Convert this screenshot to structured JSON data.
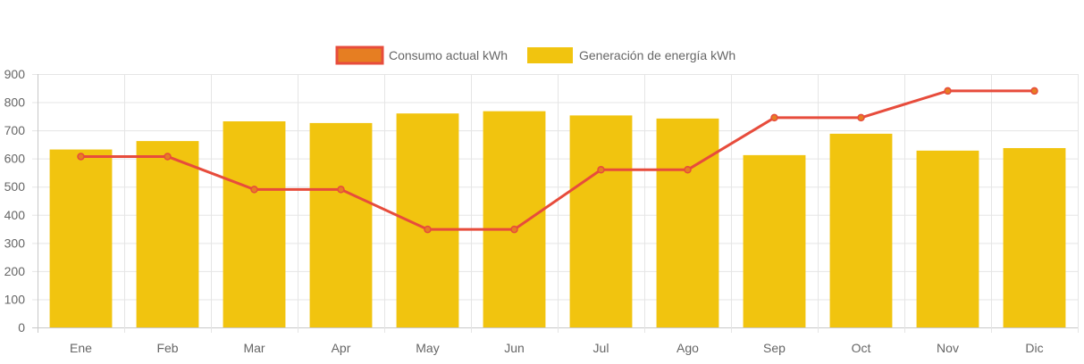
{
  "chart_data": {
    "type": "bar",
    "title": "",
    "xlabel": "",
    "ylabel": "",
    "categories": [
      "Ene",
      "Feb",
      "Mar",
      "Apr",
      "May",
      "Jun",
      "Jul",
      "Ago",
      "Sep",
      "Oct",
      "Nov",
      "Dic"
    ],
    "ylim": [
      0,
      900
    ],
    "yticks": [
      0,
      100,
      200,
      300,
      400,
      500,
      600,
      700,
      800,
      900
    ],
    "grid": true,
    "legend_position": "top-center",
    "series": [
      {
        "name": "Consumo actual kWh",
        "type": "line",
        "color": "#e74c3c",
        "fill_color": "#e67e22",
        "values": [
          607,
          607,
          490,
          490,
          348,
          348,
          560,
          560,
          745,
          745,
          840,
          840
        ]
      },
      {
        "name": "Generación de energía kWh",
        "type": "bar",
        "color": "#f1c40f",
        "values": [
          632,
          662,
          732,
          726,
          760,
          768,
          753,
          742,
          612,
          688,
          628,
          637
        ]
      }
    ]
  }
}
